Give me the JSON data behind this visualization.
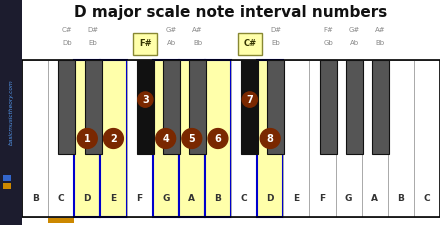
{
  "title": "D major scale note interval numbers",
  "white_notes": [
    "B",
    "C",
    "D",
    "E",
    "F",
    "G",
    "A",
    "B",
    "C",
    "D",
    "E",
    "F",
    "G",
    "A",
    "B",
    "C"
  ],
  "bg_color": "#ffffff",
  "sidebar_bg": "#1c1c2e",
  "sidebar_text_color": "#5599ee",
  "sidebar_orange": "#cc8800",
  "sidebar_blue": "#3366cc",
  "highlight_yellow": "#ffffaa",
  "highlight_border": "#cccc44",
  "interval_circle_color": "#7a2800",
  "black_key_color": "#555555",
  "scale_black_key_color": "#111111",
  "white_key_normal": "#ffffff",
  "key_border_normal": "#aaaaaa",
  "key_border_scale": "#0000cc",
  "title_color": "#111111",
  "label_color": "#333333",
  "black_label_color": "#888888",
  "white_key_count": 16,
  "black_key_after_white": [
    1,
    2,
    4,
    5,
    6,
    8,
    9,
    11,
    12,
    13
  ],
  "black_key_names": [
    "C#/Db",
    "D#/Eb",
    "F#",
    "G#/Ab",
    "A#/Bb",
    "C#",
    "D#/Eb",
    "F#/Gb",
    "G#/Ab",
    "A#/Bb"
  ],
  "black_key_line1": [
    "C#",
    "D#",
    "F#",
    "G#",
    "A#",
    "C#",
    "D#",
    "F#",
    "G#",
    "A#"
  ],
  "black_key_line2": [
    "Db",
    "Eb",
    "",
    "Ab",
    "Bb",
    "",
    "Eb",
    "Gb",
    "Ab",
    "Bb"
  ],
  "black_key_is_scale": [
    false,
    false,
    true,
    false,
    false,
    true,
    false,
    false,
    false,
    false
  ],
  "scale_white_indices": [
    2,
    3,
    5,
    6,
    7,
    9
  ],
  "white_intervals": {
    "2": "1",
    "3": "2",
    "5": "4",
    "6": "5",
    "7": "6",
    "9": "8"
  },
  "black_intervals": {
    "2": "3",
    "5": "7"
  },
  "orange_bar_white_idx": 1,
  "figure_width": 4.4,
  "figure_height": 2.25,
  "dpi": 100
}
